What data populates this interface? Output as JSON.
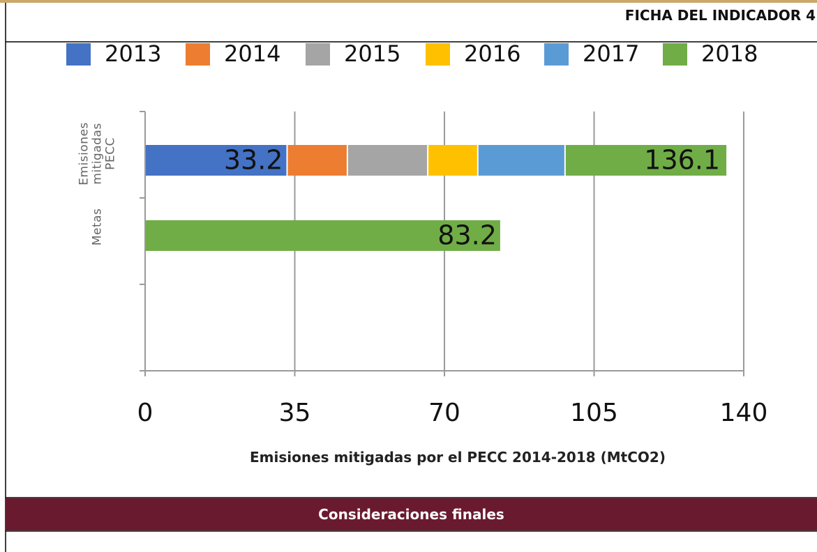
{
  "header": {
    "title": "FICHA DEL INDICADOR 4"
  },
  "chart_data": {
    "type": "stacked-bar-horizontal",
    "categories": [
      "Emisiones mitigadas PECC",
      "Metas",
      null
    ],
    "series": [
      {
        "name": "2013",
        "color": "#4472c4",
        "values": [
          33.2,
          null,
          null
        ],
        "value_labels": [
          "33.2",
          null,
          null
        ]
      },
      {
        "name": "2014",
        "color": "#ed7d31",
        "values": [
          14.1,
          null,
          null
        ]
      },
      {
        "name": "2015",
        "color": "#a5a5a5",
        "values": [
          18.8,
          null,
          null
        ]
      },
      {
        "name": "2016",
        "color": "#ffc000",
        "values": [
          11.7,
          null,
          null
        ]
      },
      {
        "name": "2017",
        "color": "#5b9bd5",
        "values": [
          20.4,
          null,
          null
        ]
      },
      {
        "name": "2018",
        "color": "#70ad47",
        "values": [
          37.9,
          83.2,
          null
        ],
        "value_labels": [
          null,
          "83.2",
          null
        ]
      }
    ],
    "annotations": [
      "136.1"
    ],
    "xlim": [
      0,
      140
    ],
    "xticks": [
      0,
      35,
      70,
      105,
      140
    ],
    "grid": true,
    "xlabel": "Emisiones mitigadas por el PECC 2014-2018 (MtCO2)",
    "legend": "top"
  },
  "section": {
    "title": "Consideraciones finales"
  }
}
